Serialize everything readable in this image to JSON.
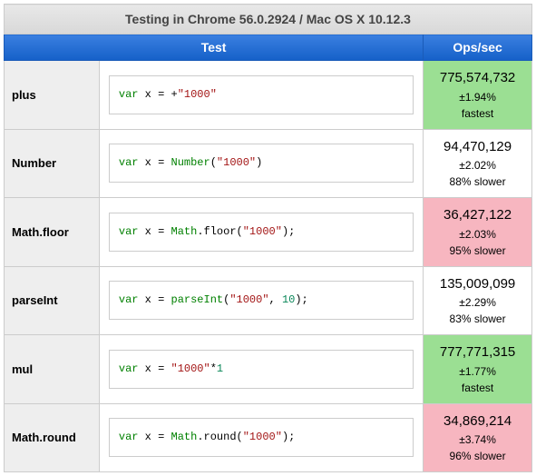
{
  "caption": "Testing in Chrome 56.0.2924 / Mac OS X 10.12.3",
  "headers": {
    "test": "Test",
    "ops": "Ops/sec"
  },
  "colors": {
    "keyword": "#008000",
    "function": "#008000",
    "string": "#a31515",
    "number": "#098658",
    "header_bg_top": "#3a7fe0",
    "header_bg_bottom": "#1560c8",
    "caption_bg_top": "#e8e8e8",
    "caption_bg_bottom": "#d8d8d8",
    "fastest_bg": "#9bdf93",
    "slowest_bg": "#f7b6c0",
    "border": "#cccccc",
    "name_bg": "#eeeeee"
  },
  "rows": [
    {
      "name": "plus",
      "code": [
        {
          "t": "var",
          "c": "kw"
        },
        {
          "t": " x = +",
          "c": ""
        },
        {
          "t": "\"1000\"",
          "c": "str"
        }
      ],
      "ops": "775,574,732",
      "err": "±1.94%",
      "note": "fastest",
      "status": "fastest"
    },
    {
      "name": "Number",
      "code": [
        {
          "t": "var",
          "c": "kw"
        },
        {
          "t": " x = ",
          "c": ""
        },
        {
          "t": "Number",
          "c": "fn"
        },
        {
          "t": "(",
          "c": ""
        },
        {
          "t": "\"1000\"",
          "c": "str"
        },
        {
          "t": ")",
          "c": ""
        }
      ],
      "ops": "94,470,129",
      "err": "±2.02%",
      "note": "88% slower",
      "status": "normal"
    },
    {
      "name": "Math.floor",
      "code": [
        {
          "t": "var",
          "c": "kw"
        },
        {
          "t": " x = ",
          "c": ""
        },
        {
          "t": "Math",
          "c": "fn"
        },
        {
          "t": ".floor(",
          "c": ""
        },
        {
          "t": "\"1000\"",
          "c": "str"
        },
        {
          "t": ");",
          "c": ""
        }
      ],
      "ops": "36,427,122",
      "err": "±2.03%",
      "note": "95% slower",
      "status": "slowest"
    },
    {
      "name": "parseInt",
      "code": [
        {
          "t": "var",
          "c": "kw"
        },
        {
          "t": " x = ",
          "c": ""
        },
        {
          "t": "parseInt",
          "c": "fn"
        },
        {
          "t": "(",
          "c": ""
        },
        {
          "t": "\"1000\"",
          "c": "str"
        },
        {
          "t": ", ",
          "c": ""
        },
        {
          "t": "10",
          "c": "num"
        },
        {
          "t": ");",
          "c": ""
        }
      ],
      "ops": "135,009,099",
      "err": "±2.29%",
      "note": "83% slower",
      "status": "normal"
    },
    {
      "name": "mul",
      "code": [
        {
          "t": "var",
          "c": "kw"
        },
        {
          "t": " x = ",
          "c": ""
        },
        {
          "t": "\"1000\"",
          "c": "str"
        },
        {
          "t": "*",
          "c": ""
        },
        {
          "t": "1",
          "c": "num"
        }
      ],
      "ops": "777,771,315",
      "err": "±1.77%",
      "note": "fastest",
      "status": "fastest"
    },
    {
      "name": "Math.round",
      "code": [
        {
          "t": "var",
          "c": "kw"
        },
        {
          "t": " x = ",
          "c": ""
        },
        {
          "t": "Math",
          "c": "fn"
        },
        {
          "t": ".round(",
          "c": ""
        },
        {
          "t": "\"1000\"",
          "c": "str"
        },
        {
          "t": ");",
          "c": ""
        }
      ],
      "ops": "34,869,214",
      "err": "±3.74%",
      "note": "96% slower",
      "status": "slowest"
    }
  ]
}
